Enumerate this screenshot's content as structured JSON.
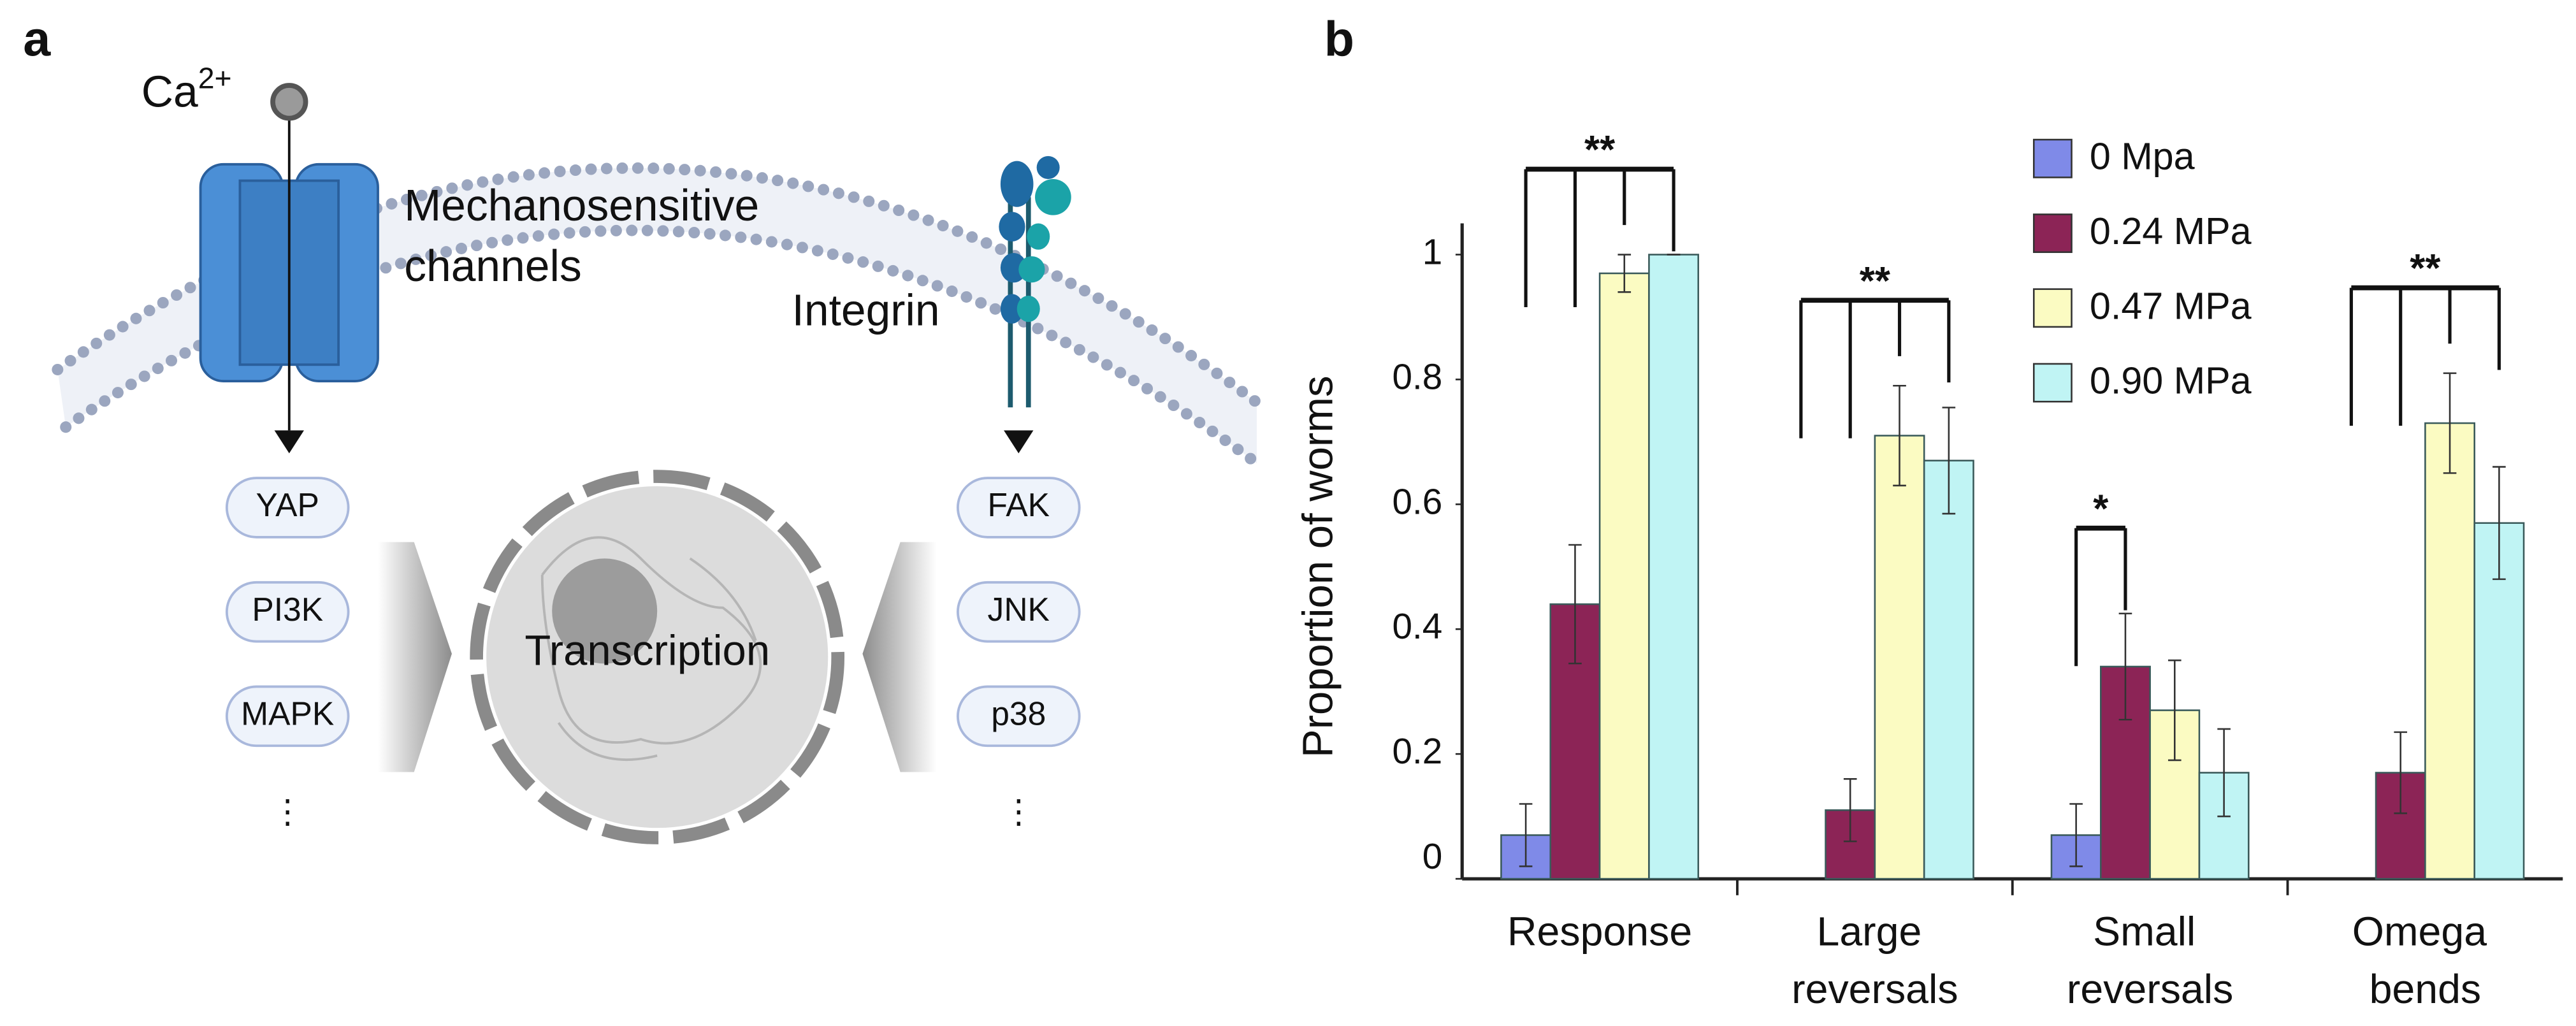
{
  "panel_a": {
    "label": "a",
    "ion": {
      "symbol": "Ca",
      "charge": "2+"
    },
    "channel_label": [
      "Mechanosensitive",
      "channels"
    ],
    "integrin_label": "Integrin",
    "left_pathways": [
      "YAP",
      "PI3K",
      "MAPK",
      "⋮"
    ],
    "right_pathways": [
      "FAK",
      "JNK",
      "p38",
      "⋮"
    ],
    "nucleus_label": "Transcription"
  },
  "chart_data": {
    "type": "bar",
    "panel_label": "b",
    "ylabel": "Proportion of worms",
    "categories": [
      "Response",
      "Large reversals",
      "Small reversals",
      "Omega bends"
    ],
    "series": [
      {
        "name": "0 Mpa",
        "color": "#7f8ae8",
        "values": [
          0.07,
          null,
          0.07,
          null
        ],
        "errors": [
          0.05,
          null,
          0.05,
          null
        ]
      },
      {
        "name": "0.24 MPa",
        "color": "#8c2456",
        "values": [
          0.44,
          0.11,
          0.34,
          0.17
        ],
        "errors": [
          0.095,
          0.05,
          0.085,
          0.065
        ]
      },
      {
        "name": "0.47 MPa",
        "color": "#fbfbc2",
        "values": [
          0.97,
          0.71,
          0.27,
          0.73
        ],
        "errors": [
          0.03,
          0.08,
          0.08,
          0.08
        ]
      },
      {
        "name": "0.90 MPa",
        "color": "#c0f4f4",
        "values": [
          1.0,
          0.67,
          0.17,
          0.57
        ],
        "errors": [
          0,
          0.085,
          0.07,
          0.09
        ]
      }
    ],
    "annotations": [
      "**",
      "**",
      "*",
      "**"
    ],
    "ylim": [
      0,
      1.05
    ],
    "yticks": [
      0,
      0.2,
      0.4,
      0.6,
      0.8,
      1
    ]
  }
}
